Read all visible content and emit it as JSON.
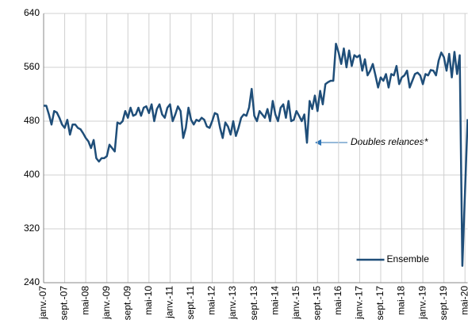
{
  "chart_data": {
    "type": "line",
    "categories": [
      "janv.-07",
      null,
      null,
      null,
      null,
      null,
      null,
      null,
      "sept.-07",
      null,
      null,
      null,
      null,
      null,
      null,
      null,
      "mai-08",
      null,
      null,
      null,
      null,
      null,
      null,
      null,
      "janv.-09",
      null,
      null,
      null,
      null,
      null,
      null,
      null,
      "sept.-09",
      null,
      null,
      null,
      null,
      null,
      null,
      null,
      "mai-10",
      null,
      null,
      null,
      null,
      null,
      null,
      null,
      "janv.-11",
      null,
      null,
      null,
      null,
      null,
      null,
      null,
      "sept.-11",
      null,
      null,
      null,
      null,
      null,
      null,
      null,
      "mai-12",
      null,
      null,
      null,
      null,
      null,
      null,
      null,
      "janv.-13",
      null,
      null,
      null,
      null,
      null,
      null,
      null,
      "sept.-13",
      null,
      null,
      null,
      null,
      null,
      null,
      null,
      "mai-14",
      null,
      null,
      null,
      null,
      null,
      null,
      null,
      "janv.-15",
      null,
      null,
      null,
      null,
      null,
      null,
      null,
      "sept.-15",
      null,
      null,
      null,
      null,
      null,
      null,
      null,
      "mai-16",
      null,
      null,
      null,
      null,
      null,
      null,
      null,
      "janv.-17",
      null,
      null,
      null,
      null,
      null,
      null,
      null,
      "sept.-17",
      null,
      null,
      null,
      null,
      null,
      null,
      null,
      "mai-18",
      null,
      null,
      null,
      null,
      null,
      null,
      null,
      "janv.-19",
      null,
      null,
      null,
      null,
      null,
      null,
      null,
      "sept.-19",
      null,
      null,
      null,
      null,
      null,
      null,
      null,
      "mai-20",
      null
    ],
    "series": [
      {
        "name": "Ensemble",
        "color": "#1f4e79",
        "values": [
          503,
          503,
          490,
          475,
          495,
          493,
          485,
          475,
          470,
          482,
          460,
          475,
          475,
          470,
          468,
          462,
          455,
          450,
          440,
          452,
          425,
          420,
          425,
          425,
          428,
          445,
          440,
          435,
          478,
          476,
          480,
          495,
          485,
          500,
          488,
          490,
          500,
          488,
          500,
          502,
          492,
          505,
          480,
          498,
          505,
          490,
          485,
          500,
          505,
          480,
          490,
          502,
          495,
          455,
          470,
          500,
          482,
          475,
          482,
          480,
          485,
          482,
          472,
          470,
          480,
          492,
          490,
          470,
          455,
          478,
          472,
          460,
          480,
          458,
          470,
          485,
          490,
          488,
          500,
          528,
          488,
          480,
          495,
          490,
          485,
          498,
          480,
          510,
          490,
          480,
          500,
          505,
          485,
          510,
          480,
          482,
          495,
          488,
          480,
          490,
          448,
          510,
          498,
          518,
          495,
          525,
          505,
          535,
          538,
          540,
          540,
          595,
          582,
          565,
          588,
          560,
          585,
          562,
          578,
          575,
          578,
          555,
          572,
          548,
          555,
          565,
          548,
          530,
          545,
          540,
          550,
          530,
          550,
          548,
          562,
          535,
          545,
          548,
          555,
          530,
          540,
          550,
          552,
          548,
          535,
          550,
          548,
          556,
          555,
          548,
          570,
          582,
          575,
          555,
          580,
          545,
          583,
          550,
          578,
          265,
          374,
          483
        ]
      }
    ],
    "ylim": [
      240,
      640
    ],
    "yticks": [
      240,
      320,
      400,
      480,
      560,
      640
    ],
    "grid": true,
    "legend": "lower right",
    "annotation": "Doubles relances*"
  }
}
